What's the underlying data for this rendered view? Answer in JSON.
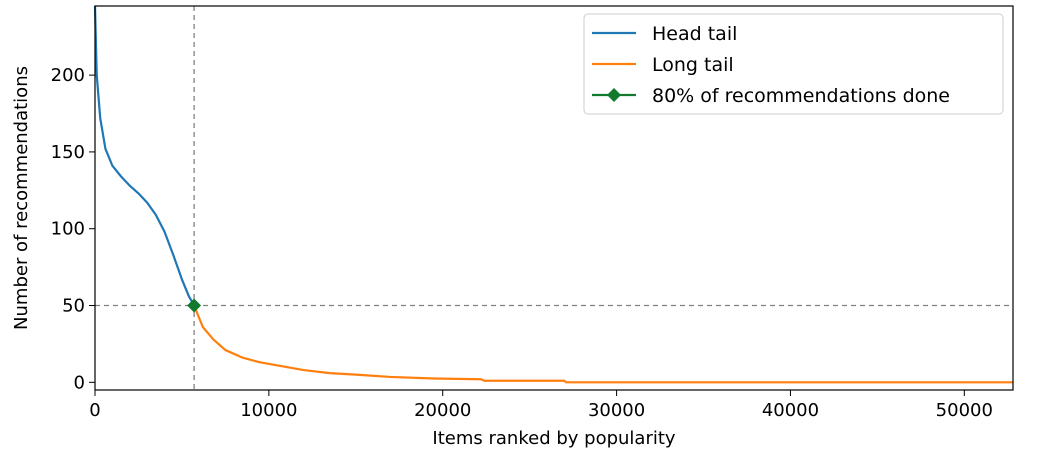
{
  "chart_data": {
    "type": "line",
    "title": "",
    "xlabel": "Items ranked by popularity",
    "ylabel": "Number of recommendations",
    "xlim": [
      0,
      52800
    ],
    "ylim": [
      -5,
      245
    ],
    "xticks": [
      0,
      10000,
      20000,
      30000,
      40000,
      50000
    ],
    "xtick_labels": [
      "0",
      "10000",
      "20000",
      "30000",
      "40000",
      "50000"
    ],
    "yticks": [
      0,
      50,
      100,
      150,
      200
    ],
    "ytick_labels": [
      "0",
      "50",
      "100",
      "150",
      "200"
    ],
    "grid": false,
    "legend_position": "top-right",
    "reference_lines": {
      "x": 5700,
      "y": 50,
      "style": "dashed",
      "color": "#808080"
    },
    "series": [
      {
        "name": "Head tail",
        "color": "#1f77b4",
        "points": [
          [
            0,
            245
          ],
          [
            100,
            200
          ],
          [
            300,
            172
          ],
          [
            600,
            152
          ],
          [
            1000,
            141
          ],
          [
            1500,
            134
          ],
          [
            2000,
            128
          ],
          [
            2500,
            123
          ],
          [
            3000,
            117
          ],
          [
            3500,
            109
          ],
          [
            4000,
            98
          ],
          [
            4500,
            83
          ],
          [
            5000,
            67
          ],
          [
            5400,
            56
          ],
          [
            5700,
            50
          ]
        ]
      },
      {
        "name": "Long tail",
        "color": "#ff7f0e",
        "points": [
          [
            5700,
            50
          ],
          [
            6200,
            36
          ],
          [
            6800,
            28
          ],
          [
            7500,
            21
          ],
          [
            8500,
            16
          ],
          [
            9500,
            13
          ],
          [
            10500,
            11
          ],
          [
            12000,
            8
          ],
          [
            13500,
            6
          ],
          [
            15000,
            5
          ],
          [
            17000,
            3.5
          ],
          [
            19500,
            2.5
          ],
          [
            22200,
            2
          ],
          [
            22400,
            1
          ],
          [
            27000,
            1
          ],
          [
            27100,
            0
          ],
          [
            52800,
            0
          ]
        ]
      },
      {
        "name": "80% of recommendations done",
        "color": "#117a2e",
        "marker": "diamond",
        "points": [
          [
            5700,
            50
          ]
        ]
      }
    ]
  }
}
